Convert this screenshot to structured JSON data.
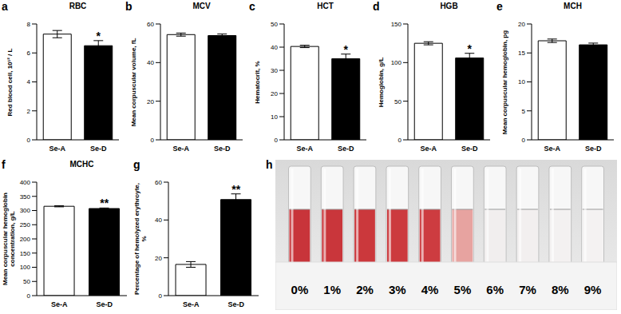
{
  "chart_data": [
    {
      "panel": "a",
      "type": "bar",
      "title": "RBC",
      "y_label": "Red blood cell, 10¹² / L",
      "categories": [
        "Se-A",
        "Se-D"
      ],
      "values": [
        7.3,
        6.5
      ],
      "errors": [
        0.25,
        0.35
      ],
      "colors": [
        "#ffffff",
        "#000000"
      ],
      "annotations": [
        null,
        "*"
      ],
      "ylim": [
        0,
        8
      ],
      "yticks": [
        0,
        2,
        4,
        6,
        8
      ]
    },
    {
      "panel": "b",
      "type": "bar",
      "title": "MCV",
      "y_label": "Mean corpuscular volume, fL",
      "categories": [
        "Se-A",
        "Se-D"
      ],
      "values": [
        54.5,
        54.0
      ],
      "errors": [
        0.8,
        0.8
      ],
      "colors": [
        "#ffffff",
        "#000000"
      ],
      "annotations": [
        null,
        null
      ],
      "ylim": [
        0,
        60
      ],
      "yticks": [
        0,
        20,
        40,
        60
      ]
    },
    {
      "panel": "c",
      "type": "bar",
      "title": "HCT",
      "y_label": "Hematocrit, %",
      "categories": [
        "Se-A",
        "Se-D"
      ],
      "values": [
        40.3,
        35.0
      ],
      "errors": [
        0.5,
        2.0
      ],
      "colors": [
        "#ffffff",
        "#000000"
      ],
      "annotations": [
        null,
        "*"
      ],
      "ylim": [
        0,
        50
      ],
      "yticks": [
        0,
        10,
        20,
        30,
        40,
        50
      ]
    },
    {
      "panel": "d",
      "type": "bar",
      "title": "HGB",
      "y_label": "Hemoglobin, g/L",
      "categories": [
        "Se-A",
        "Se-D"
      ],
      "values": [
        125,
        106
      ],
      "errors": [
        2,
        6
      ],
      "colors": [
        "#ffffff",
        "#000000"
      ],
      "annotations": [
        null,
        "*"
      ],
      "ylim": [
        0,
        150
      ],
      "yticks": [
        0,
        50,
        100,
        150
      ]
    },
    {
      "panel": "e",
      "type": "bar",
      "title": "MCH",
      "y_label": "Mean corpuscular hemoglobin, pg",
      "categories": [
        "Se-A",
        "Se-D"
      ],
      "values": [
        17.1,
        16.4
      ],
      "errors": [
        0.3,
        0.3
      ],
      "colors": [
        "#ffffff",
        "#000000"
      ],
      "annotations": [
        null,
        null
      ],
      "ylim": [
        0,
        20
      ],
      "yticks": [
        0,
        5,
        10,
        15,
        20
      ]
    },
    {
      "panel": "f",
      "type": "bar",
      "title": "MCHC",
      "y_label": "Mean corpuscular hemoglobin concentration, g/L",
      "categories": [
        "Se-A",
        "Se-D"
      ],
      "values": [
        315,
        307
      ],
      "errors": [
        2,
        2
      ],
      "colors": [
        "#ffffff",
        "#000000"
      ],
      "annotations": [
        null,
        "**"
      ],
      "ylim": [
        0,
        400
      ],
      "yticks": [
        0,
        50,
        100,
        150,
        200,
        250,
        300,
        350,
        400
      ]
    },
    {
      "panel": "g",
      "type": "bar",
      "title": null,
      "y_label": "Percentage of hemolyzed erythroyte, %",
      "categories": [
        "Se-A",
        "Se-D"
      ],
      "values": [
        16.5,
        50.8
      ],
      "errors": [
        1.5,
        3.0
      ],
      "colors": [
        "#ffffff",
        "#000000"
      ],
      "annotations": [
        null,
        "**"
      ],
      "ylim": [
        0,
        60
      ],
      "yticks": [
        0,
        20,
        40,
        60
      ]
    }
  ],
  "photo": {
    "panel": "h",
    "tube_labels": [
      "0%",
      "1%",
      "2%",
      "3%",
      "4%",
      "5%",
      "6%",
      "7%",
      "8%",
      "9%"
    ],
    "tube_colors": [
      "#c8343a",
      "#c9363b",
      "#cb383c",
      "#cc3a3e",
      "#cd3c40",
      "#e7a3a0",
      "#f1eeee",
      "#f2efef",
      "#f3f1f1",
      "#f4f2f2"
    ]
  }
}
